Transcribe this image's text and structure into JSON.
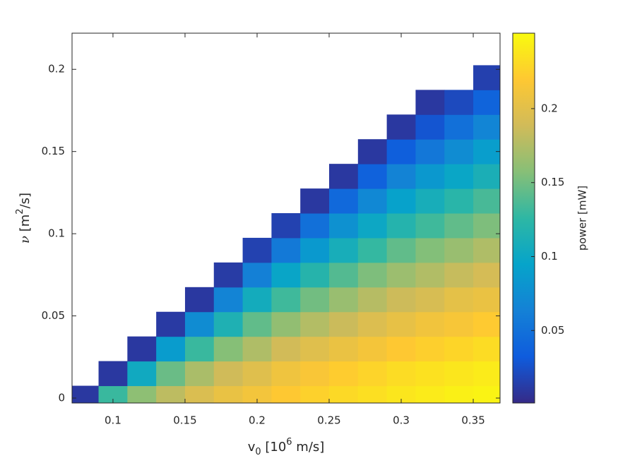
{
  "chart_data": {
    "type": "heatmap",
    "xlabel": [
      "v",
      "0",
      " [10",
      "6",
      " m/s]"
    ],
    "ylabel": [
      "ν",
      " [m",
      "2",
      "/s]"
    ],
    "colorbar_label": "power [mW]",
    "x": [
      0.08,
      0.1,
      0.12,
      0.14,
      0.16,
      0.18,
      0.2,
      0.22,
      0.24,
      0.26,
      0.28,
      0.3,
      0.32,
      0.34,
      0.36
    ],
    "y": [
      0,
      0.015,
      0.03,
      0.045,
      0.06,
      0.075,
      0.09,
      0.105,
      0.12,
      0.135,
      0.15,
      0.165,
      0.18,
      0.195,
      0.21
    ],
    "z": [
      [
        0.01,
        0.13,
        0.16,
        0.18,
        0.195,
        0.205,
        0.212,
        0.22,
        0.225,
        0.23,
        0.234,
        0.238,
        0.241,
        0.244,
        0.246
      ],
      [
        null,
        0.01,
        0.103,
        0.147,
        0.172,
        0.188,
        0.198,
        0.209,
        0.216,
        0.222,
        0.227,
        0.232,
        0.235,
        0.238,
        0.241
      ],
      [
        null,
        null,
        0.01,
        0.088,
        0.13,
        0.157,
        0.174,
        0.189,
        0.198,
        0.206,
        0.213,
        0.22,
        0.224,
        0.228,
        0.232
      ],
      [
        null,
        null,
        null,
        0.011,
        0.073,
        0.114,
        0.144,
        0.162,
        0.176,
        0.186,
        0.196,
        0.204,
        0.211,
        0.215,
        0.221
      ],
      [
        null,
        null,
        null,
        null,
        0.01,
        0.066,
        0.106,
        0.132,
        0.15,
        0.165,
        0.177,
        0.187,
        0.193,
        0.202,
        0.206
      ],
      [
        null,
        null,
        null,
        null,
        null,
        0.012,
        0.063,
        0.097,
        0.12,
        0.139,
        0.154,
        0.166,
        0.175,
        0.184,
        0.191
      ],
      [
        null,
        null,
        null,
        null,
        null,
        null,
        0.016,
        0.057,
        0.085,
        0.109,
        0.128,
        0.144,
        0.156,
        0.165,
        0.174
      ],
      [
        null,
        null,
        null,
        null,
        null,
        null,
        null,
        0.016,
        0.049,
        0.078,
        0.1,
        0.119,
        0.132,
        0.144,
        0.154
      ],
      [
        null,
        null,
        null,
        null,
        null,
        null,
        null,
        null,
        0.01,
        0.043,
        0.07,
        0.093,
        0.109,
        0.122,
        0.135
      ],
      [
        null,
        null,
        null,
        null,
        null,
        null,
        null,
        null,
        null,
        0.01,
        0.037,
        0.065,
        0.084,
        0.098,
        0.111
      ],
      [
        null,
        null,
        null,
        null,
        null,
        null,
        null,
        null,
        null,
        null,
        0.01,
        0.035,
        0.055,
        0.073,
        0.089
      ],
      [
        null,
        null,
        null,
        null,
        null,
        null,
        null,
        null,
        null,
        null,
        null,
        0.01,
        0.028,
        0.049,
        0.067
      ],
      [
        null,
        null,
        null,
        null,
        null,
        null,
        null,
        null,
        null,
        null,
        null,
        null,
        0.01,
        0.021,
        0.039
      ],
      [
        null,
        null,
        null,
        null,
        null,
        null,
        null,
        null,
        null,
        null,
        null,
        null,
        null,
        null,
        0.015
      ],
      [
        null,
        null,
        null,
        null,
        null,
        null,
        null,
        null,
        null,
        null,
        null,
        null,
        null,
        null,
        null
      ]
    ],
    "xlim": [
      0.0716,
      0.3686
    ],
    "xticks": [
      0.1,
      0.15,
      0.2,
      0.25,
      0.3,
      0.35
    ],
    "ylim": [
      -0.003,
      0.222
    ],
    "yticks": [
      0,
      0.05,
      0.1,
      0.15,
      0.2
    ],
    "clim": [
      0.001,
      0.251
    ],
    "cticks": [
      0.05,
      0.1,
      0.15,
      0.2
    ],
    "colormap": [
      "#352a87",
      "#0f5cdd",
      "#1481d6",
      "#06a4ca",
      "#2eb7a4",
      "#87bf77",
      "#d1bb59",
      "#fec832",
      "#f9fb0e"
    ]
  }
}
